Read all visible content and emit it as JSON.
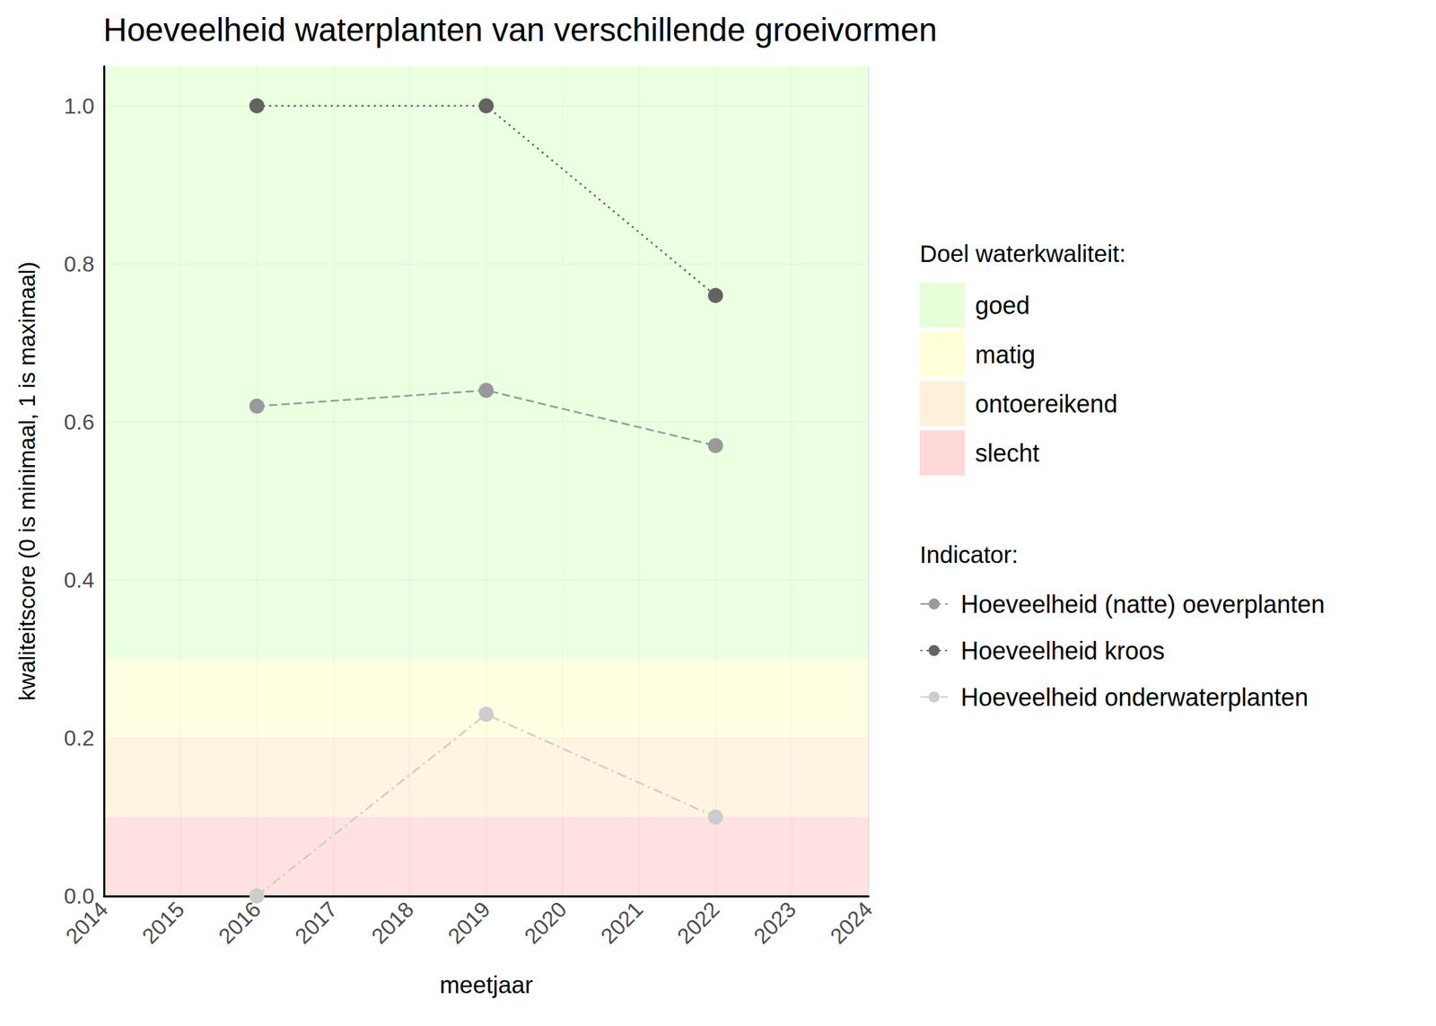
{
  "chart_data": {
    "type": "line",
    "title": "Hoeveelheid waterplanten van verschillende groeivormen",
    "x_label": "meetjaar",
    "y_label": "kwaliteitscore (0 is minimaal, 1 is maximaal)",
    "x": [
      2016,
      2019,
      2022
    ],
    "series": [
      {
        "name": "Hoeveelheid (natte) oeverplanten",
        "color": "#999999",
        "line_style": "dashed",
        "marker": "circle",
        "values": [
          0.62,
          0.64,
          0.57
        ]
      },
      {
        "name": "Hoeveelheid kroos",
        "color": "#636363",
        "line_style": "dotted",
        "marker": "circle",
        "values": [
          1.0,
          1.0,
          0.76
        ]
      },
      {
        "name": "Hoeveelheid onderwaterplanten",
        "color": "#cccccc",
        "line_style": "dashdot",
        "marker": "circle",
        "values": [
          0.0,
          0.23,
          0.1
        ]
      }
    ],
    "legend_title": "Indicator:",
    "bands_title": "Doel waterkwaliteit:",
    "bands": [
      {
        "name": "goed",
        "from": 0.3,
        "to": 1.05,
        "color": "#e6ffd9"
      },
      {
        "name": "matig",
        "from": 0.2,
        "to": 0.3,
        "color": "#ffffd9"
      },
      {
        "name": "ontoereikend",
        "from": 0.1,
        "to": 0.2,
        "color": "#fff0d9"
      },
      {
        "name": "slecht",
        "from": 0.0,
        "to": 0.1,
        "color": "#ffd9d9"
      }
    ],
    "xlim": [
      2014,
      2024
    ],
    "xticks": [
      2014,
      2015,
      2016,
      2017,
      2018,
      2019,
      2020,
      2021,
      2022,
      2023,
      2024
    ],
    "ylim": [
      0,
      1.05
    ],
    "yticks": [
      {
        "value": 0,
        "label": "0.0"
      },
      {
        "value": 0.2,
        "label": "0.2"
      },
      {
        "value": 0.4,
        "label": "0.4"
      },
      {
        "value": 0.6,
        "label": "0.6"
      },
      {
        "value": 0.8,
        "label": "0.8"
      },
      {
        "value": 1,
        "label": "1.0"
      }
    ],
    "grid": true,
    "legend": "right"
  }
}
